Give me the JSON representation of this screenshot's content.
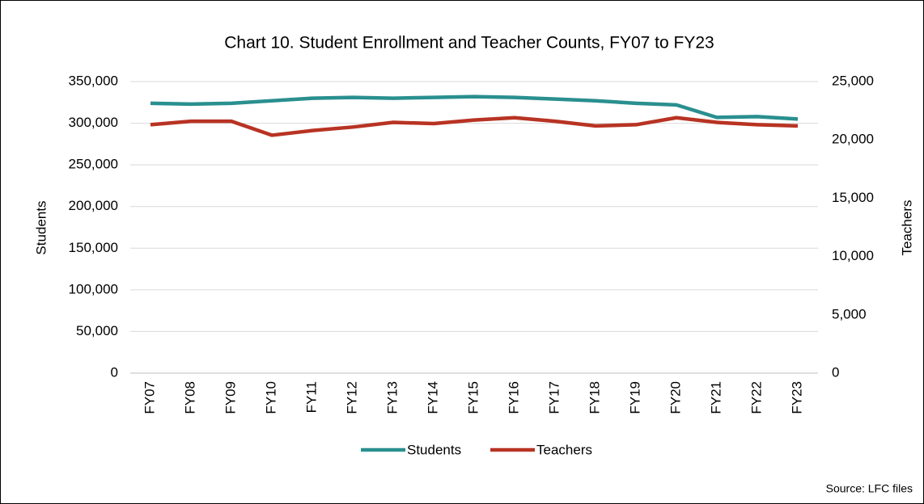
{
  "chart_data": {
    "type": "line",
    "title": "Chart 10. Student Enrollment and Teacher Counts, FY07 to FY23",
    "y_label": "Students",
    "y2_label": "Teachers",
    "source": "Source: LFC files",
    "categories": [
      "FY07",
      "FY08",
      "FY09",
      "FY10",
      "FY11",
      "FY12",
      "FY13",
      "FY14",
      "FY15",
      "FY16",
      "FY17",
      "FY18",
      "FY19",
      "FY20",
      "FY21",
      "FY22",
      "FY23"
    ],
    "series": [
      {
        "name": "Students",
        "color": "#2a8f8f",
        "values": [
          324000,
          323000,
          324000,
          327000,
          330000,
          331000,
          330000,
          331000,
          332000,
          331000,
          329000,
          327000,
          324000,
          322000,
          307000,
          308000,
          305000
        ]
      },
      {
        "name": "Teachers",
        "color": "#b83323",
        "axis": "y2",
        "values": [
          21300,
          21600,
          21600,
          20400,
          20800,
          21100,
          21500,
          21400,
          21700,
          21900,
          21600,
          21200,
          21300,
          21900,
          21500,
          21300,
          21200
        ]
      }
    ],
    "ylim": [
      0,
      350000
    ],
    "yticks": [
      0,
      {
        "value": 50000,
        "label": "50,000"
      },
      {
        "value": 100000,
        "label": "100,000"
      },
      {
        "value": 150000,
        "label": "150,000"
      },
      {
        "value": 200000,
        "label": "200,000"
      },
      {
        "value": 250000,
        "label": "250,000"
      },
      {
        "value": 300000,
        "label": "300,000"
      },
      {
        "value": 350000,
        "label": "350,000"
      }
    ],
    "y2lim": [
      0,
      25000
    ],
    "y2ticks": [
      0,
      {
        "value": 5000,
        "label": "5,000"
      },
      {
        "value": 10000,
        "label": "10,000"
      },
      {
        "value": 15000,
        "label": "15,000"
      },
      {
        "value": 20000,
        "label": "20,000"
      },
      {
        "value": 25000,
        "label": "25,000"
      }
    ],
    "grid": true,
    "legend": "bottom"
  }
}
